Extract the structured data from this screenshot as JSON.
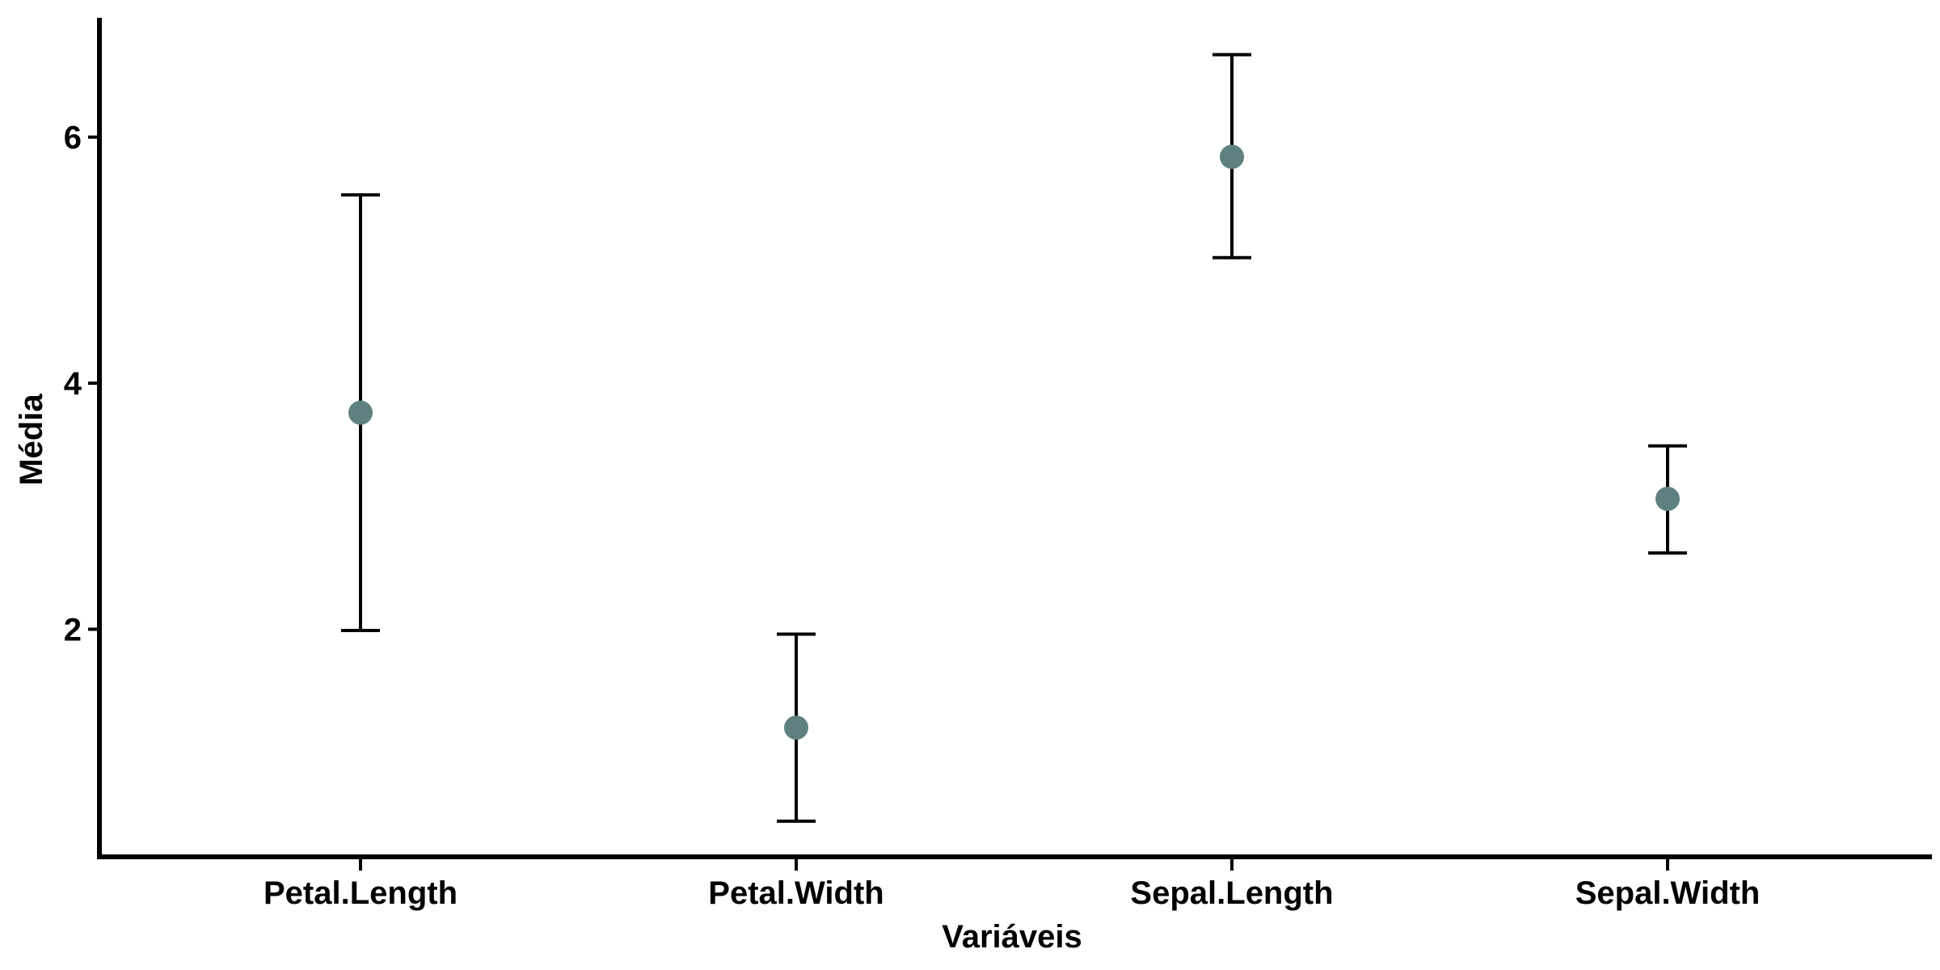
{
  "chart_data": {
    "type": "scatter",
    "title": "",
    "xlabel": "Variáveis",
    "ylabel": "Média",
    "categories": [
      "Petal.Length",
      "Petal.Width",
      "Sepal.Length",
      "Sepal.Width"
    ],
    "points": [
      {
        "category": "Petal.Length",
        "mean": 3.76,
        "lower": 1.99,
        "upper": 5.53
      },
      {
        "category": "Petal.Width",
        "mean": 1.2,
        "lower": 0.44,
        "upper": 1.96
      },
      {
        "category": "Sepal.Length",
        "mean": 5.84,
        "lower": 5.02,
        "upper": 6.67
      },
      {
        "category": "Sepal.Width",
        "mean": 3.06,
        "lower": 2.62,
        "upper": 3.49
      }
    ],
    "yticks": [
      2,
      4,
      6
    ],
    "ylim": [
      0.15,
      6.97
    ],
    "grid": false,
    "colors": {
      "point": "#5f8080",
      "errorbar": "#000000",
      "axis": "#000000"
    }
  }
}
